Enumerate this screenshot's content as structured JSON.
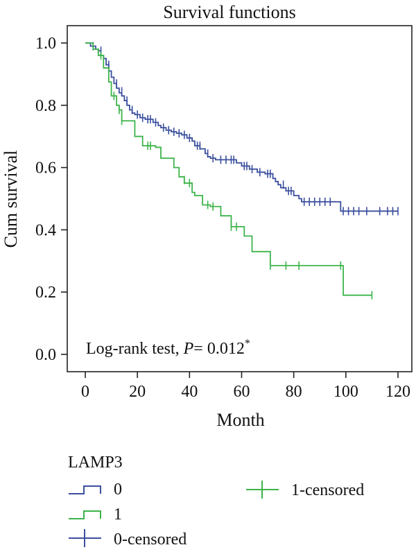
{
  "chart_data": {
    "type": "line",
    "subtype": "kaplan-meier",
    "title": "Survival functions",
    "xlabel": "Month",
    "ylabel": "Cum survival",
    "xlim": [
      -5,
      125
    ],
    "ylim": [
      -0.02,
      1.03
    ],
    "xticks": [
      0,
      20,
      40,
      60,
      80,
      100,
      120
    ],
    "yticks": [
      0.0,
      0.2,
      0.4,
      0.6,
      0.8,
      1.0
    ],
    "xtick_labels": [
      "0",
      "20",
      "40",
      "60",
      "80",
      "100",
      "120"
    ],
    "ytick_labels": [
      "0.0",
      "0.2",
      "0.4",
      "0.6",
      "0.8",
      "1.0"
    ],
    "grid": false,
    "annotation": {
      "prefix": "Log-rank test, ",
      "p_symbol": "P",
      "p_value": "= 0.012",
      "superscript": "*"
    },
    "legend": {
      "title": "LAMP3",
      "placement": "bottom",
      "entries": [
        {
          "label": "0",
          "kind": "step",
          "color": "#3b4f9e"
        },
        {
          "label": "1",
          "kind": "step",
          "color": "#3cb44a"
        },
        {
          "label": "0-censored",
          "kind": "cross",
          "color": "#3b4f9e"
        },
        {
          "label": "1-censored",
          "kind": "cross",
          "color": "#3cb44a"
        }
      ]
    },
    "series": [
      {
        "name": "0",
        "color": "#3b4f9e",
        "steps": [
          [
            0,
            1.0
          ],
          [
            2,
            0.99
          ],
          [
            4,
            0.98
          ],
          [
            5,
            0.975
          ],
          [
            6,
            0.96
          ],
          [
            7,
            0.95
          ],
          [
            8,
            0.93
          ],
          [
            9,
            0.91
          ],
          [
            10,
            0.89
          ],
          [
            11,
            0.87
          ],
          [
            12,
            0.855
          ],
          [
            13,
            0.84
          ],
          [
            14,
            0.83
          ],
          [
            15,
            0.815
          ],
          [
            16,
            0.8
          ],
          [
            17,
            0.785
          ],
          [
            18,
            0.775
          ],
          [
            19,
            0.77
          ],
          [
            21,
            0.76
          ],
          [
            23,
            0.755
          ],
          [
            26,
            0.745
          ],
          [
            28,
            0.735
          ],
          [
            29,
            0.728
          ],
          [
            31,
            0.72
          ],
          [
            33,
            0.715
          ],
          [
            35,
            0.71
          ],
          [
            37,
            0.705
          ],
          [
            39,
            0.695
          ],
          [
            41,
            0.685
          ],
          [
            42,
            0.67
          ],
          [
            44,
            0.66
          ],
          [
            46,
            0.645
          ],
          [
            47,
            0.635
          ],
          [
            48,
            0.63
          ],
          [
            50,
            0.625
          ],
          [
            58,
            0.615
          ],
          [
            60,
            0.605
          ],
          [
            63,
            0.595
          ],
          [
            66,
            0.585
          ],
          [
            69,
            0.58
          ],
          [
            72,
            0.565
          ],
          [
            73,
            0.555
          ],
          [
            74,
            0.545
          ],
          [
            75,
            0.535
          ],
          [
            77,
            0.525
          ],
          [
            80,
            0.51
          ],
          [
            82,
            0.5
          ],
          [
            83,
            0.49
          ],
          [
            96,
            0.49
          ],
          [
            98,
            0.46
          ],
          [
            120,
            0.46
          ]
        ],
        "censored": [
          [
            3,
            0.99
          ],
          [
            6,
            0.975
          ],
          [
            9,
            0.93
          ],
          [
            12,
            0.87
          ],
          [
            14,
            0.845
          ],
          [
            16,
            0.815
          ],
          [
            18,
            0.785
          ],
          [
            20,
            0.77
          ],
          [
            22,
            0.76
          ],
          [
            24,
            0.755
          ],
          [
            25,
            0.755
          ],
          [
            27,
            0.745
          ],
          [
            30,
            0.728
          ],
          [
            32,
            0.72
          ],
          [
            34,
            0.715
          ],
          [
            36,
            0.71
          ],
          [
            38,
            0.705
          ],
          [
            40,
            0.695
          ],
          [
            43,
            0.67
          ],
          [
            44,
            0.67
          ],
          [
            47,
            0.645
          ],
          [
            49,
            0.63
          ],
          [
            52,
            0.625
          ],
          [
            54,
            0.625
          ],
          [
            56,
            0.625
          ],
          [
            57,
            0.625
          ],
          [
            61,
            0.605
          ],
          [
            62,
            0.605
          ],
          [
            64,
            0.595
          ],
          [
            67,
            0.585
          ],
          [
            70,
            0.58
          ],
          [
            71,
            0.58
          ],
          [
            76,
            0.545
          ],
          [
            78,
            0.525
          ],
          [
            79,
            0.525
          ],
          [
            84,
            0.49
          ],
          [
            86,
            0.49
          ],
          [
            88,
            0.49
          ],
          [
            90,
            0.49
          ],
          [
            92,
            0.49
          ],
          [
            94,
            0.49
          ],
          [
            99,
            0.46
          ],
          [
            101,
            0.46
          ],
          [
            103,
            0.46
          ],
          [
            105,
            0.46
          ],
          [
            108,
            0.46
          ],
          [
            113,
            0.46
          ],
          [
            116,
            0.46
          ],
          [
            118,
            0.46
          ],
          [
            120,
            0.46
          ]
        ]
      },
      {
        "name": "1",
        "color": "#3cb44a",
        "steps": [
          [
            0,
            1.0
          ],
          [
            3,
            0.98
          ],
          [
            5,
            0.96
          ],
          [
            7,
            0.92
          ],
          [
            9,
            0.875
          ],
          [
            10,
            0.83
          ],
          [
            12,
            0.8
          ],
          [
            13,
            0.785
          ],
          [
            14,
            0.75
          ],
          [
            19,
            0.7
          ],
          [
            22,
            0.67
          ],
          [
            27,
            0.665
          ],
          [
            29,
            0.63
          ],
          [
            34,
            0.6
          ],
          [
            36,
            0.57
          ],
          [
            38,
            0.55
          ],
          [
            41,
            0.52
          ],
          [
            42,
            0.51
          ],
          [
            45,
            0.48
          ],
          [
            48,
            0.475
          ],
          [
            52,
            0.445
          ],
          [
            56,
            0.41
          ],
          [
            61,
            0.38
          ],
          [
            64,
            0.33
          ],
          [
            71,
            0.285
          ],
          [
            98,
            0.285
          ],
          [
            99,
            0.19
          ],
          [
            110,
            0.19
          ]
        ],
        "censored": [
          [
            6,
            0.96
          ],
          [
            11,
            0.83
          ],
          [
            13,
            0.785
          ],
          [
            14,
            0.75
          ],
          [
            24,
            0.67
          ],
          [
            25,
            0.67
          ],
          [
            38,
            0.56
          ],
          [
            40,
            0.55
          ],
          [
            47,
            0.48
          ],
          [
            49,
            0.475
          ],
          [
            56,
            0.41
          ],
          [
            58,
            0.41
          ],
          [
            71,
            0.285
          ],
          [
            77,
            0.285
          ],
          [
            82,
            0.285
          ],
          [
            98,
            0.285
          ],
          [
            110,
            0.19
          ]
        ]
      }
    ]
  }
}
